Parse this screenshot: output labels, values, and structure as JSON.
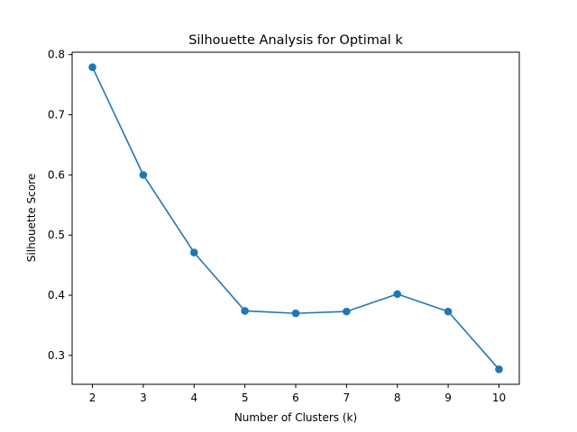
{
  "chart_data": {
    "type": "line",
    "title": "Silhouette Analysis for Optimal k",
    "xlabel": "Number of Clusters (k)",
    "ylabel": "Silhouette Score",
    "x": [
      2,
      3,
      4,
      5,
      6,
      7,
      8,
      9,
      10
    ],
    "series": [
      {
        "values": [
          0.779,
          0.6,
          0.471,
          0.374,
          0.37,
          0.373,
          0.402,
          0.373,
          0.277
        ]
      }
    ],
    "xticks": [
      2,
      3,
      4,
      5,
      6,
      7,
      8,
      9,
      10
    ],
    "xtick_labels": [
      "2",
      "3",
      "4",
      "5",
      "6",
      "7",
      "8",
      "9",
      "10"
    ],
    "yticks": [
      0.3,
      0.4,
      0.5,
      0.6,
      0.7,
      0.8
    ],
    "ytick_labels": [
      "0.3",
      "0.4",
      "0.5",
      "0.6",
      "0.7",
      "0.8"
    ],
    "xlim": [
      1.6,
      10.4
    ],
    "ylim": [
      0.252,
      0.804
    ],
    "grid": false,
    "marker": "circle",
    "color": "#1f77b4"
  }
}
